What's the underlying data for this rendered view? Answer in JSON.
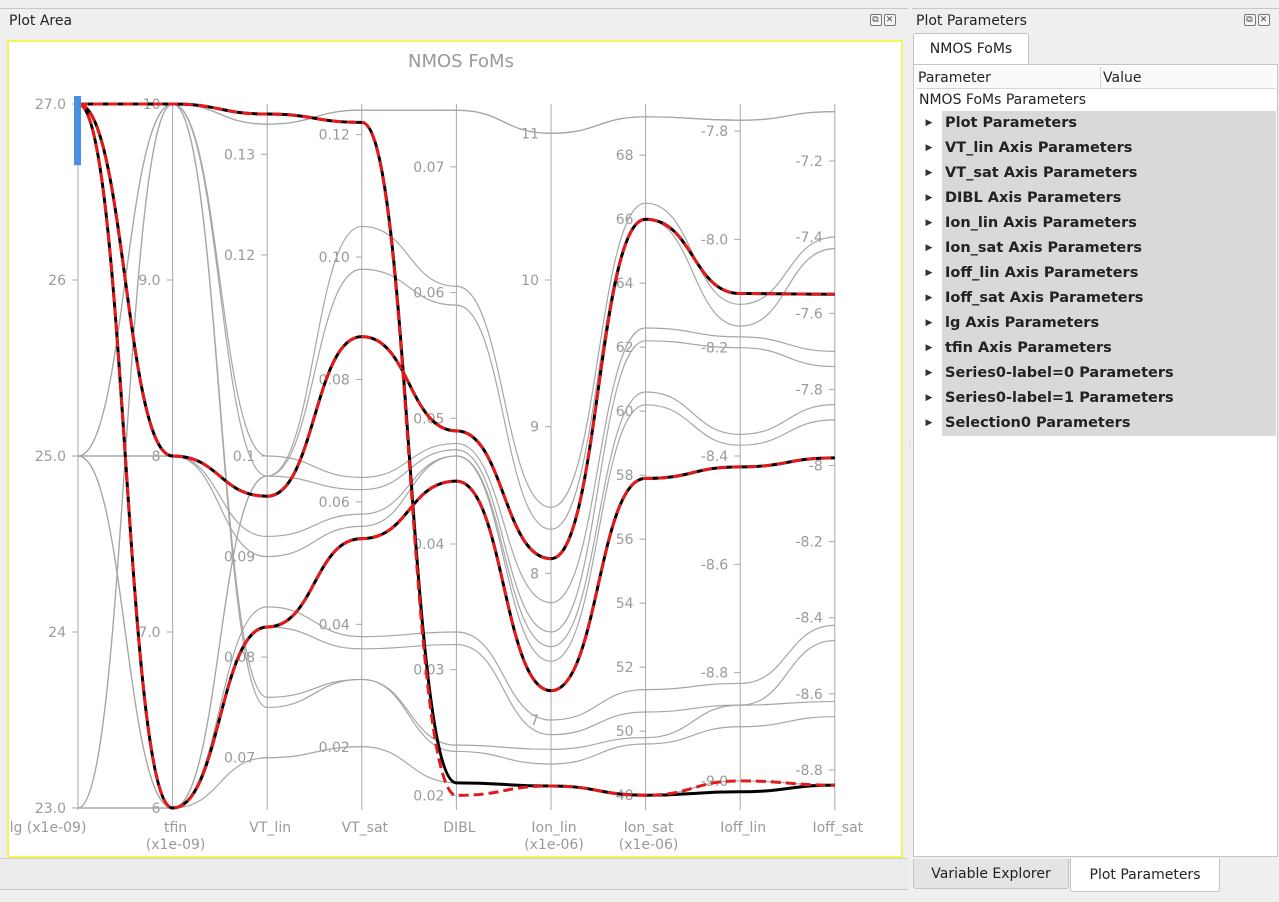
{
  "plot_pane": {
    "title": "Plot Area"
  },
  "params_pane": {
    "title": "Plot Parameters"
  },
  "tabs": {
    "top": "NMOS FoMs",
    "bottom": [
      "Variable Explorer",
      "Plot Parameters"
    ]
  },
  "tree": {
    "headers": [
      "Parameter",
      "Value"
    ],
    "root": "NMOS FoMs Parameters",
    "items": [
      "Plot Parameters",
      "VT_lin Axis Parameters",
      "VT_sat Axis Parameters",
      "DIBL Axis Parameters",
      "Ion_lin Axis Parameters",
      "Ion_sat Axis Parameters",
      "Ioff_lin Axis Parameters",
      "Ioff_sat Axis Parameters",
      "lg Axis Parameters",
      "tfin Axis Parameters",
      "Series0-label=0 Parameters",
      "Series0-label=1 Parameters",
      "Selection0 Parameters"
    ]
  },
  "icons": [
    "dock-float-icon",
    "dock-close-icon",
    "tree-expand-arrow-icon"
  ],
  "chart_data": {
    "type": "parallel-coordinates",
    "title": "NMOS FoMs",
    "axes": [
      {
        "name": "lg (x1e-09)",
        "ticks": [
          "27.0",
          "26",
          "25.0",
          "24",
          "23.0"
        ],
        "range": [
          23,
          27
        ]
      },
      {
        "name": "tfin\n(x1e-09)",
        "ticks": [
          "10",
          "9.0",
          "8",
          "7.0",
          "6"
        ],
        "range": [
          6,
          10
        ]
      },
      {
        "name": "VT_lin",
        "ticks": [
          "0.13",
          "0.12",
          "0.1",
          "0.09",
          "0.08",
          "0.07"
        ],
        "range": [
          0.065,
          0.135
        ]
      },
      {
        "name": "VT_sat",
        "ticks": [
          "0.12",
          "0.10",
          "0.08",
          "0.06",
          "0.04",
          "0.02"
        ],
        "range": [
          0.01,
          0.125
        ]
      },
      {
        "name": "DIBL",
        "ticks": [
          "0.07",
          "0.06",
          "0.05",
          "0.04",
          "0.03",
          "0.02"
        ],
        "range": [
          0.019,
          0.075
        ]
      },
      {
        "name": "Ion_lin\n(x1e-06)",
        "ticks": [
          "11",
          "10",
          "9",
          "8",
          "7"
        ],
        "range": [
          6.4,
          11.2
        ]
      },
      {
        "name": "Ion_sat\n(x1e-06)",
        "ticks": [
          "68",
          "66",
          "64",
          "62",
          "60",
          "58",
          "56",
          "54",
          "52",
          "50",
          "48"
        ],
        "range": [
          47.6,
          69.6
        ]
      },
      {
        "name": "Ioff_lin",
        "ticks": [
          "-7.8",
          "-8.0",
          "-8.2",
          "-8.4",
          "-8.6",
          "-8.8",
          "-9.0"
        ],
        "range": [
          -9.05,
          -7.75
        ]
      },
      {
        "name": "Ioff_sat",
        "ticks": [
          "-7.2",
          "-7.4",
          "-7.6",
          "-7.8",
          "-8",
          "-8.2",
          "-8.4",
          "-8.6",
          "-8.8"
        ],
        "range": [
          -8.9,
          -7.05
        ]
      }
    ],
    "gray_series": [
      [
        27.0,
        10,
        0.133,
        0.124,
        0.0745,
        11.0,
        69.2,
        -7.78,
        -7.07
      ],
      [
        27.0,
        10,
        0.133,
        0.124,
        0.0745,
        11.0,
        69.2,
        -7.78,
        -7.07
      ],
      [
        25.0,
        6,
        0.098,
        0.105,
        0.0605,
        8.45,
        66.5,
        -8.12,
        -7.4
      ],
      [
        25.0,
        6,
        0.098,
        0.098,
        0.059,
        8.3,
        66.0,
        -8.16,
        -7.43
      ],
      [
        23.0,
        10,
        0.1,
        0.064,
        0.048,
        7.8,
        62.6,
        -8.18,
        -7.7
      ],
      [
        23.0,
        10,
        0.098,
        0.062,
        0.0475,
        7.6,
        62.2,
        -8.2,
        -7.74
      ],
      [
        25.0,
        8,
        0.092,
        0.058,
        0.047,
        7.5,
        60.6,
        -8.36,
        -7.84
      ],
      [
        25.0,
        8,
        0.09,
        0.056,
        0.047,
        7.4,
        60.2,
        -8.38,
        -7.88
      ],
      [
        23.0,
        6,
        0.085,
        0.038,
        0.033,
        7.0,
        51.3,
        -8.82,
        -8.42
      ],
      [
        23.0,
        6,
        0.083,
        0.036,
        0.032,
        6.9,
        50.6,
        -8.86,
        -8.46
      ],
      [
        25.0,
        10,
        0.076,
        0.031,
        0.024,
        6.8,
        49.8,
        -8.86,
        -8.62
      ],
      [
        25.0,
        10,
        0.075,
        0.031,
        0.0235,
        6.7,
        49.6,
        -8.9,
        -8.66
      ],
      [
        27.0,
        6,
        0.07,
        0.02,
        0.021,
        6.55,
        48.0,
        -9.0,
        -8.84
      ]
    ],
    "black_series": [
      [
        27.0,
        10,
        0.134,
        0.122,
        0.021,
        6.55,
        48.0,
        -9.02,
        -8.84
      ],
      [
        27.0,
        8,
        0.096,
        0.087,
        0.049,
        8.1,
        66.0,
        -8.1,
        -7.55
      ],
      [
        27.0,
        6,
        0.083,
        0.054,
        0.045,
        7.2,
        57.9,
        -8.42,
        -7.98
      ]
    ],
    "red_series": [
      [
        27.0,
        10,
        0.134,
        0.122,
        0.02,
        6.55,
        48.0,
        -9.0,
        -8.84
      ],
      [
        27.0,
        8,
        0.096,
        0.087,
        0.049,
        8.1,
        66.0,
        -8.1,
        -7.55
      ],
      [
        27.0,
        6,
        0.083,
        0.054,
        0.045,
        7.2,
        57.9,
        -8.42,
        -7.98
      ]
    ],
    "selection": {
      "axis": "lg (x1e-09)",
      "range": [
        26.8,
        27.0
      ]
    }
  }
}
